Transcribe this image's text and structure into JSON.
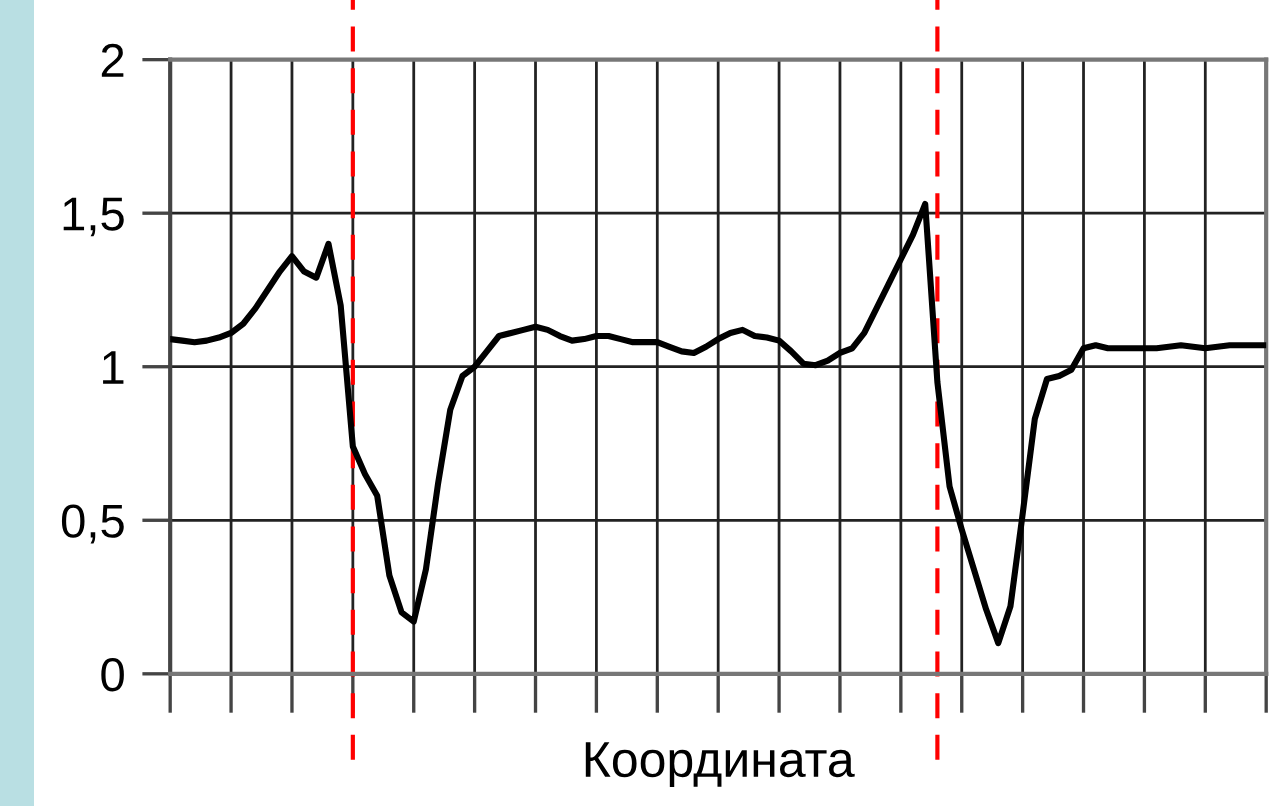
{
  "chart_data": {
    "type": "line",
    "xlabel": "Координата",
    "categories": [
      null,
      null,
      null,
      null,
      null,
      null,
      null,
      null,
      null,
      null,
      null,
      null,
      null,
      null,
      null,
      null,
      null,
      null,
      null,
      null,
      null,
      null,
      null,
      null,
      null,
      null,
      null,
      null,
      null,
      null,
      null,
      null,
      null,
      null,
      null,
      null,
      null,
      null,
      null,
      null,
      null,
      null,
      null,
      null,
      null,
      null,
      null,
      null,
      null,
      null,
      null,
      null,
      null,
      null,
      null,
      null,
      null,
      null,
      null,
      null,
      null,
      null,
      null,
      null,
      null,
      null,
      null,
      null,
      null,
      null,
      null,
      null,
      null,
      null,
      null,
      null,
      null,
      null,
      null,
      null,
      null,
      null,
      null,
      null,
      null,
      null,
      null,
      null,
      null,
      null,
      null
    ],
    "series": [
      {
        "color": "#000000",
        "values": [
          1.09,
          1.085,
          1.08,
          1.085,
          1.095,
          1.11,
          1.14,
          1.19,
          1.25,
          1.31,
          1.36,
          1.31,
          1.29,
          1.4,
          1.2,
          0.74,
          0.65,
          0.58,
          0.32,
          0.2,
          0.17,
          0.34,
          0.62,
          0.86,
          0.97,
          1.0,
          1.05,
          1.1,
          1.11,
          1.12,
          1.13,
          1.12,
          1.1,
          1.085,
          1.09,
          1.1,
          1.1,
          1.09,
          1.08,
          1.08,
          1.08,
          1.065,
          1.05,
          1.045,
          1.065,
          1.09,
          1.11,
          1.12,
          1.1,
          1.095,
          1.085,
          1.05,
          1.01,
          1.005,
          1.02,
          1.045,
          1.06,
          1.11,
          1.19,
          1.27,
          1.35,
          1.43,
          1.53,
          0.95,
          0.61,
          0.47,
          0.34,
          0.21,
          0.1,
          0.22,
          0.52,
          0.83,
          0.96,
          0.97,
          0.99,
          1.06,
          1.07,
          1.06,
          1.06,
          1.06,
          1.06,
          1.06,
          1.065,
          1.07,
          1.065,
          1.06,
          1.065,
          1.07,
          1.07,
          1.07,
          1.07
        ]
      }
    ],
    "ylim": [
      0,
      2
    ],
    "yticks": [
      0,
      {
        "value": 0.5,
        "label": "0,5"
      },
      1,
      {
        "value": 1.5,
        "label": "1,5"
      },
      2
    ],
    "grid": true,
    "marker": "none",
    "line_style": "solid",
    "tick_labels": "y"
  }
}
